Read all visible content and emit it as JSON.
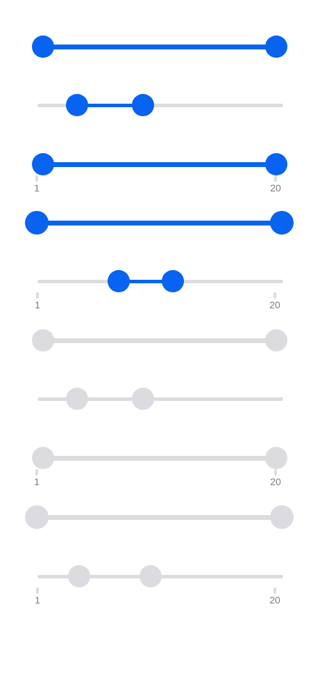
{
  "colors": {
    "accent": "#0763f0",
    "track": "#dcdce0",
    "disabled_fill": "#dcdce0",
    "disabled_thumb": "#dcdce0",
    "tick_label": "#7a7a7e"
  },
  "scale": {
    "min_label": "1",
    "max_label": "20"
  },
  "sliders": [
    {
      "id": "slider-1",
      "state": "enabled",
      "low": 0.0,
      "high": 1.0,
      "labels": false
    },
    {
      "id": "slider-2",
      "state": "enabled",
      "low": 0.16,
      "high": 0.43,
      "labels": false
    },
    {
      "id": "slider-3",
      "state": "enabled",
      "low": 0.0,
      "high": 1.0,
      "labels": true
    },
    {
      "id": "slider-4",
      "state": "enabled",
      "low": 0.0,
      "high": 1.0,
      "labels": false
    },
    {
      "id": "slider-5",
      "state": "enabled",
      "low": 0.33,
      "high": 0.55,
      "labels": true
    },
    {
      "id": "slider-6",
      "state": "disabled",
      "low": 0.0,
      "high": 1.0,
      "labels": false
    },
    {
      "id": "slider-7",
      "state": "disabled",
      "low": 0.16,
      "high": 0.43,
      "labels": false
    },
    {
      "id": "slider-8",
      "state": "disabled",
      "low": 0.0,
      "high": 1.0,
      "labels": true
    },
    {
      "id": "slider-9",
      "state": "disabled",
      "low": 0.0,
      "high": 1.0,
      "labels": false
    },
    {
      "id": "slider-10",
      "state": "disabled",
      "low": 0.17,
      "high": 0.46,
      "labels": true
    }
  ]
}
